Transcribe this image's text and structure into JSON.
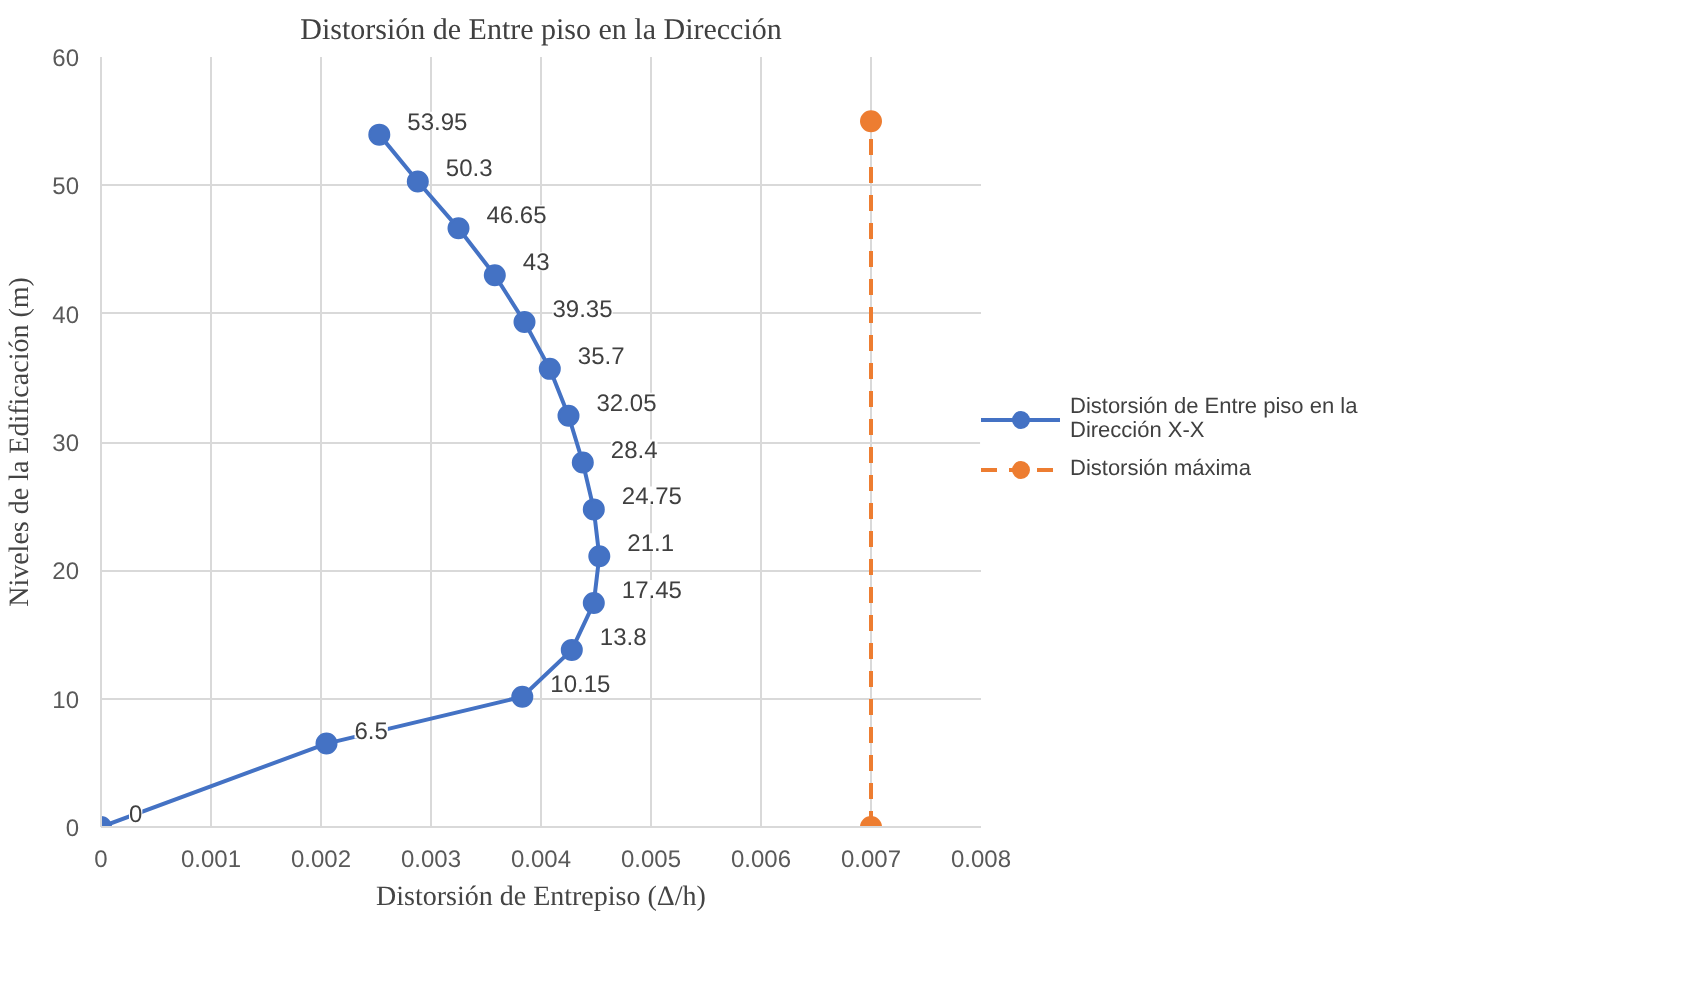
{
  "chart_data": {
    "type": "line",
    "title": "Distorsión de Entre piso en la Dirección",
    "xlabel": "Distorsión de Entrepiso (Δ/h)",
    "ylabel": "Niveles de la Edificación (m)",
    "xlim": [
      0,
      0.008
    ],
    "xticks": [
      0,
      0.001,
      0.002,
      0.003,
      0.004,
      0.005,
      0.006,
      0.007,
      0.008
    ],
    "ylim": [
      0,
      60
    ],
    "yticks": [
      0,
      10,
      20,
      30,
      40,
      50,
      60
    ],
    "grid": true,
    "legend": "right",
    "marker": "circle",
    "series": [
      {
        "name": "Distorsión de Entre piso en la Dirección X-X",
        "color": "#4472c4",
        "line_style": "solid",
        "x": [
          0,
          0.00205,
          0.00383,
          0.00428,
          0.00448,
          0.00453,
          0.00448,
          0.00438,
          0.00425,
          0.00408,
          0.00385,
          0.00358,
          0.00325,
          0.00288,
          0.00253
        ],
        "values": [
          0,
          6.5,
          10.15,
          13.8,
          17.45,
          21.1,
          24.75,
          28.4,
          32.05,
          35.7,
          39.35,
          43,
          46.65,
          50.3,
          53.95
        ],
        "value_labels": [
          "0",
          "6.5",
          "10.15",
          "13.8",
          "17.45",
          "21.1",
          "24.75",
          "28.4",
          "32.05",
          "35.7",
          "39.35",
          "43",
          "46.65",
          "50.3",
          "53.95"
        ]
      },
      {
        "name": "Distorsión máxima",
        "color": "#ed7d31",
        "line_style": "dashed",
        "x": [
          0.007,
          0.007
        ],
        "values": [
          0,
          55
        ]
      }
    ]
  }
}
